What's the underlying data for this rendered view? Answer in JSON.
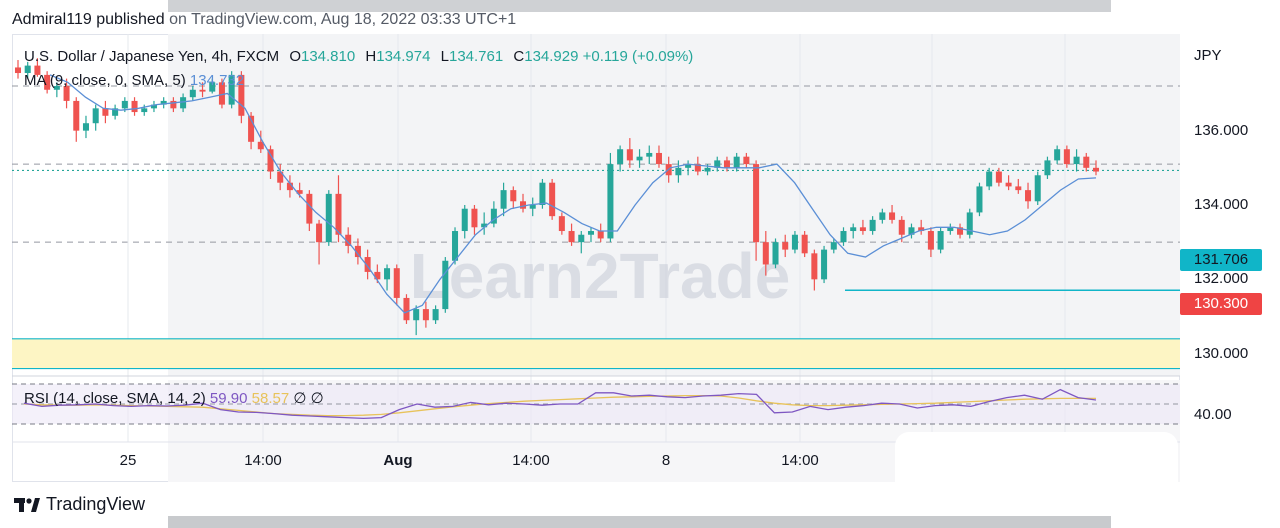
{
  "publisher": {
    "user": "Admiral119 published",
    "rest": " on TradingView.com, Aug 18, 2022 03:33 UTC+1"
  },
  "legend": {
    "symbol": "U.S. Dollar / Japanese Yen, 4h, FXCM",
    "o_label": "O",
    "o": "134.810",
    "h_label": "H",
    "h": "134.974",
    "l_label": "L",
    "l": "134.761",
    "c_label": "C",
    "c": "134.929",
    "change": "+0.119 (+0.09%)"
  },
  "ma_legend": {
    "label": "MA (9, close, 0, SMA, 5)",
    "value": "134.732"
  },
  "rsi_legend": {
    "label": "RSI (14, close, SMA, 14, 2)",
    "v1": "59.90",
    "v2": "58.57",
    "icons": "∅ ∅"
  },
  "price_axis": {
    "currency": "JPY",
    "ticks": [
      "136.000",
      "134.000",
      "132.000",
      "130.000"
    ]
  },
  "rsi_axis": {
    "ticks": [
      "40.00"
    ]
  },
  "time_axis": {
    "ticks": [
      "25",
      "14:00",
      "Aug",
      "14:00",
      "8",
      "14:00"
    ]
  },
  "tags": {
    "cyan": "131.706",
    "red": "130.300"
  },
  "watermark": "Learn2Trade",
  "footer": "TradingView",
  "colors": {
    "up": "#26a69a",
    "down": "#ef5350",
    "ma": "#5b8fd6",
    "rsi": "#7e57c2",
    "rsi_ma": "#e8c35b",
    "zone": "#fdf5c4",
    "level": "#10b5c8"
  },
  "chart_data": {
    "type": "candlestick",
    "title": "U.S. Dollar / Japanese Yen, 4h, FXCM",
    "ylabel": "JPY",
    "ylim": [
      129.4,
      138.6
    ],
    "levels": [
      131.706,
      130.3
    ],
    "zone": [
      129.6,
      130.4
    ],
    "candles": [
      {
        "o": 137.7,
        "h": 137.9,
        "l": 137.4,
        "c": 137.55
      },
      {
        "o": 137.55,
        "h": 137.85,
        "l": 137.4,
        "c": 137.75
      },
      {
        "o": 137.75,
        "h": 137.95,
        "l": 137.45,
        "c": 137.5
      },
      {
        "o": 137.5,
        "h": 137.6,
        "l": 137.0,
        "c": 137.1
      },
      {
        "o": 137.1,
        "h": 137.3,
        "l": 136.9,
        "c": 137.2
      },
      {
        "o": 137.2,
        "h": 137.4,
        "l": 136.6,
        "c": 136.8
      },
      {
        "o": 136.8,
        "h": 136.9,
        "l": 135.7,
        "c": 136.0
      },
      {
        "o": 136.0,
        "h": 136.4,
        "l": 135.8,
        "c": 136.2
      },
      {
        "o": 136.2,
        "h": 136.7,
        "l": 136.0,
        "c": 136.6
      },
      {
        "o": 136.6,
        "h": 136.8,
        "l": 136.2,
        "c": 136.4
      },
      {
        "o": 136.4,
        "h": 136.7,
        "l": 136.3,
        "c": 136.6
      },
      {
        "o": 136.6,
        "h": 136.9,
        "l": 136.5,
        "c": 136.8
      },
      {
        "o": 136.8,
        "h": 136.9,
        "l": 136.4,
        "c": 136.5
      },
      {
        "o": 136.5,
        "h": 136.7,
        "l": 136.4,
        "c": 136.6
      },
      {
        "o": 136.6,
        "h": 136.8,
        "l": 136.5,
        "c": 136.7
      },
      {
        "o": 136.7,
        "h": 136.9,
        "l": 136.6,
        "c": 136.8
      },
      {
        "o": 136.8,
        "h": 136.9,
        "l": 136.5,
        "c": 136.6
      },
      {
        "o": 136.6,
        "h": 137.0,
        "l": 136.5,
        "c": 136.9
      },
      {
        "o": 136.9,
        "h": 137.2,
        "l": 136.8,
        "c": 137.1
      },
      {
        "o": 137.1,
        "h": 137.3,
        "l": 136.9,
        "c": 137.05
      },
      {
        "o": 137.05,
        "h": 137.4,
        "l": 137.0,
        "c": 137.3
      },
      {
        "o": 137.3,
        "h": 137.4,
        "l": 136.6,
        "c": 136.7
      },
      {
        "o": 136.7,
        "h": 137.6,
        "l": 136.6,
        "c": 137.5
      },
      {
        "o": 137.5,
        "h": 137.6,
        "l": 136.2,
        "c": 136.4
      },
      {
        "o": 136.4,
        "h": 136.5,
        "l": 135.5,
        "c": 135.7
      },
      {
        "o": 135.7,
        "h": 136.0,
        "l": 135.4,
        "c": 135.5
      },
      {
        "o": 135.5,
        "h": 135.6,
        "l": 134.7,
        "c": 134.9
      },
      {
        "o": 134.9,
        "h": 135.1,
        "l": 134.4,
        "c": 134.6
      },
      {
        "o": 134.6,
        "h": 134.8,
        "l": 134.2,
        "c": 134.4
      },
      {
        "o": 134.4,
        "h": 134.6,
        "l": 134.2,
        "c": 134.3
      },
      {
        "o": 134.3,
        "h": 134.4,
        "l": 133.3,
        "c": 133.5
      },
      {
        "o": 133.5,
        "h": 133.6,
        "l": 132.4,
        "c": 133.0
      },
      {
        "o": 133.0,
        "h": 134.4,
        "l": 132.9,
        "c": 134.3
      },
      {
        "o": 134.3,
        "h": 134.8,
        "l": 133.0,
        "c": 133.2
      },
      {
        "o": 133.2,
        "h": 133.4,
        "l": 132.7,
        "c": 132.9
      },
      {
        "o": 132.9,
        "h": 133.1,
        "l": 132.4,
        "c": 132.6
      },
      {
        "o": 132.6,
        "h": 132.8,
        "l": 132.0,
        "c": 132.2
      },
      {
        "o": 132.2,
        "h": 132.4,
        "l": 131.9,
        "c": 132.0
      },
      {
        "o": 132.0,
        "h": 132.4,
        "l": 131.7,
        "c": 132.3
      },
      {
        "o": 132.3,
        "h": 132.4,
        "l": 131.3,
        "c": 131.5
      },
      {
        "o": 131.5,
        "h": 131.6,
        "l": 130.8,
        "c": 130.9
      },
      {
        "o": 130.9,
        "h": 131.3,
        "l": 130.5,
        "c": 131.2
      },
      {
        "o": 131.2,
        "h": 131.4,
        "l": 130.7,
        "c": 130.9
      },
      {
        "o": 130.9,
        "h": 131.3,
        "l": 130.8,
        "c": 131.2
      },
      {
        "o": 131.2,
        "h": 132.6,
        "l": 131.1,
        "c": 132.5
      },
      {
        "o": 132.5,
        "h": 133.4,
        "l": 132.4,
        "c": 133.3
      },
      {
        "o": 133.3,
        "h": 134.0,
        "l": 133.1,
        "c": 133.9
      },
      {
        "o": 133.9,
        "h": 134.0,
        "l": 133.2,
        "c": 133.4
      },
      {
        "o": 133.4,
        "h": 133.8,
        "l": 133.2,
        "c": 133.5
      },
      {
        "o": 133.5,
        "h": 134.1,
        "l": 133.4,
        "c": 133.9
      },
      {
        "o": 133.9,
        "h": 134.6,
        "l": 133.7,
        "c": 134.4
      },
      {
        "o": 134.4,
        "h": 134.5,
        "l": 133.9,
        "c": 134.1
      },
      {
        "o": 134.1,
        "h": 134.3,
        "l": 133.8,
        "c": 133.9
      },
      {
        "o": 133.9,
        "h": 134.2,
        "l": 133.7,
        "c": 134.0
      },
      {
        "o": 134.0,
        "h": 134.7,
        "l": 133.9,
        "c": 134.6
      },
      {
        "o": 134.6,
        "h": 134.7,
        "l": 133.6,
        "c": 133.7
      },
      {
        "o": 133.7,
        "h": 133.8,
        "l": 133.2,
        "c": 133.3
      },
      {
        "o": 133.3,
        "h": 133.5,
        "l": 132.9,
        "c": 133.0
      },
      {
        "o": 133.0,
        "h": 133.3,
        "l": 132.7,
        "c": 133.2
      },
      {
        "o": 133.2,
        "h": 133.4,
        "l": 133.0,
        "c": 133.3
      },
      {
        "o": 133.3,
        "h": 133.5,
        "l": 133.0,
        "c": 133.1
      },
      {
        "o": 133.1,
        "h": 135.4,
        "l": 133.0,
        "c": 135.1
      },
      {
        "o": 135.1,
        "h": 135.6,
        "l": 134.9,
        "c": 135.5
      },
      {
        "o": 135.5,
        "h": 135.8,
        "l": 135.0,
        "c": 135.2
      },
      {
        "o": 135.2,
        "h": 135.5,
        "l": 135.0,
        "c": 135.3
      },
      {
        "o": 135.3,
        "h": 135.6,
        "l": 135.1,
        "c": 135.4
      },
      {
        "o": 135.4,
        "h": 135.6,
        "l": 135.0,
        "c": 135.1
      },
      {
        "o": 135.1,
        "h": 135.3,
        "l": 134.6,
        "c": 134.8
      },
      {
        "o": 134.8,
        "h": 135.2,
        "l": 134.6,
        "c": 135.0
      },
      {
        "o": 135.0,
        "h": 135.2,
        "l": 134.8,
        "c": 135.1
      },
      {
        "o": 135.1,
        "h": 135.3,
        "l": 134.8,
        "c": 134.9
      },
      {
        "o": 134.9,
        "h": 135.1,
        "l": 134.8,
        "c": 135.0
      },
      {
        "o": 135.0,
        "h": 135.3,
        "l": 134.9,
        "c": 135.2
      },
      {
        "o": 135.2,
        "h": 135.3,
        "l": 134.9,
        "c": 135.0
      },
      {
        "o": 135.0,
        "h": 135.4,
        "l": 134.9,
        "c": 135.3
      },
      {
        "o": 135.3,
        "h": 135.4,
        "l": 135.0,
        "c": 135.1
      },
      {
        "o": 135.1,
        "h": 135.2,
        "l": 132.5,
        "c": 133.0
      },
      {
        "o": 133.0,
        "h": 133.3,
        "l": 132.1,
        "c": 132.4
      },
      {
        "o": 132.4,
        "h": 133.1,
        "l": 132.3,
        "c": 133.0
      },
      {
        "o": 133.0,
        "h": 133.2,
        "l": 132.6,
        "c": 132.8
      },
      {
        "o": 132.8,
        "h": 133.3,
        "l": 132.7,
        "c": 133.2
      },
      {
        "o": 133.2,
        "h": 133.3,
        "l": 132.6,
        "c": 132.7
      },
      {
        "o": 132.7,
        "h": 132.8,
        "l": 131.7,
        "c": 132.0
      },
      {
        "o": 132.0,
        "h": 132.9,
        "l": 131.9,
        "c": 132.8
      },
      {
        "o": 132.8,
        "h": 133.1,
        "l": 132.7,
        "c": 133.0
      },
      {
        "o": 133.0,
        "h": 133.4,
        "l": 132.9,
        "c": 133.3
      },
      {
        "o": 133.3,
        "h": 133.5,
        "l": 133.1,
        "c": 133.4
      },
      {
        "o": 133.4,
        "h": 133.6,
        "l": 133.2,
        "c": 133.3
      },
      {
        "o": 133.3,
        "h": 133.7,
        "l": 133.2,
        "c": 133.6
      },
      {
        "o": 133.6,
        "h": 133.9,
        "l": 133.5,
        "c": 133.8
      },
      {
        "o": 133.8,
        "h": 134.0,
        "l": 133.5,
        "c": 133.6
      },
      {
        "o": 133.6,
        "h": 133.7,
        "l": 133.0,
        "c": 133.2
      },
      {
        "o": 133.2,
        "h": 133.5,
        "l": 133.1,
        "c": 133.4
      },
      {
        "o": 133.4,
        "h": 133.6,
        "l": 133.2,
        "c": 133.3
      },
      {
        "o": 133.3,
        "h": 133.4,
        "l": 132.6,
        "c": 132.8
      },
      {
        "o": 132.8,
        "h": 133.4,
        "l": 132.7,
        "c": 133.3
      },
      {
        "o": 133.3,
        "h": 133.5,
        "l": 133.2,
        "c": 133.4
      },
      {
        "o": 133.4,
        "h": 133.5,
        "l": 133.1,
        "c": 133.2
      },
      {
        "o": 133.2,
        "h": 133.9,
        "l": 133.1,
        "c": 133.8
      },
      {
        "o": 133.8,
        "h": 134.6,
        "l": 133.7,
        "c": 134.5
      },
      {
        "o": 134.5,
        "h": 135.0,
        "l": 134.4,
        "c": 134.9
      },
      {
        "o": 134.9,
        "h": 135.0,
        "l": 134.5,
        "c": 134.6
      },
      {
        "o": 134.6,
        "h": 134.8,
        "l": 134.4,
        "c": 134.5
      },
      {
        "o": 134.5,
        "h": 134.7,
        "l": 134.3,
        "c": 134.4
      },
      {
        "o": 134.4,
        "h": 134.6,
        "l": 133.9,
        "c": 134.1
      },
      {
        "o": 134.1,
        "h": 134.9,
        "l": 134.0,
        "c": 134.8
      },
      {
        "o": 134.8,
        "h": 135.3,
        "l": 134.7,
        "c": 135.2
      },
      {
        "o": 135.2,
        "h": 135.6,
        "l": 135.1,
        "c": 135.5
      },
      {
        "o": 135.5,
        "h": 135.6,
        "l": 135.0,
        "c": 135.1
      },
      {
        "o": 135.1,
        "h": 135.5,
        "l": 134.9,
        "c": 135.3
      },
      {
        "o": 135.3,
        "h": 135.4,
        "l": 134.9,
        "c": 135.0
      },
      {
        "o": 135.0,
        "h": 135.2,
        "l": 134.8,
        "c": 134.9
      }
    ],
    "ma": [
      137.5,
      137.3,
      136.9,
      136.6,
      136.55,
      136.6,
      136.7,
      136.75,
      136.8,
      136.9,
      137.0,
      136.6,
      135.7,
      134.9,
      134.3,
      133.8,
      133.4,
      132.9,
      132.3,
      131.6,
      131.1,
      131.3,
      132.0,
      132.6,
      133.2,
      133.6,
      133.9,
      134.0,
      134.05,
      133.8,
      133.5,
      133.3,
      133.3,
      134.0,
      134.6,
      135.0,
      135.1,
      135.05,
      135.0,
      135.0,
      135.0,
      135.1,
      134.6,
      133.9,
      133.2,
      132.7,
      132.6,
      132.9,
      133.1,
      133.3,
      133.4,
      133.4,
      133.3,
      133.2,
      133.3,
      133.6,
      134.0,
      134.4,
      134.7,
      134.73
    ],
    "rsi": [
      0.52,
      0.44,
      0.47,
      0.48,
      0.5,
      0.46,
      0.44,
      0.46,
      0.45,
      0.47,
      0.52,
      0.36,
      0.3,
      0.29,
      0.26,
      0.22,
      0.2,
      0.18,
      0.16,
      0.14,
      0.16,
      0.36,
      0.5,
      0.42,
      0.44,
      0.54,
      0.48,
      0.52,
      0.5,
      0.47,
      0.5,
      0.5,
      0.78,
      0.78,
      0.7,
      0.72,
      0.68,
      0.66,
      0.7,
      0.72,
      0.76,
      0.74,
      0.28,
      0.3,
      0.44,
      0.36,
      0.42,
      0.46,
      0.52,
      0.5,
      0.4,
      0.46,
      0.48,
      0.44,
      0.56,
      0.66,
      0.72,
      0.62,
      0.86,
      0.66,
      0.6
    ],
    "rsi_ma": [
      0.5,
      0.48,
      0.47,
      0.47,
      0.48,
      0.47,
      0.46,
      0.45,
      0.44,
      0.43,
      0.42,
      0.38,
      0.34,
      0.3,
      0.26,
      0.24,
      0.22,
      0.21,
      0.21,
      0.22,
      0.24,
      0.28,
      0.33,
      0.38,
      0.43,
      0.47,
      0.51,
      0.54,
      0.57,
      0.59,
      0.61,
      0.63,
      0.65,
      0.67,
      0.68,
      0.69,
      0.7,
      0.71,
      0.71,
      0.7,
      0.65,
      0.58,
      0.52,
      0.48,
      0.46,
      0.46,
      0.47,
      0.48,
      0.49,
      0.5,
      0.51,
      0.52,
      0.54,
      0.56,
      0.58,
      0.6,
      0.62,
      0.63,
      0.64,
      0.64,
      0.64
    ]
  }
}
